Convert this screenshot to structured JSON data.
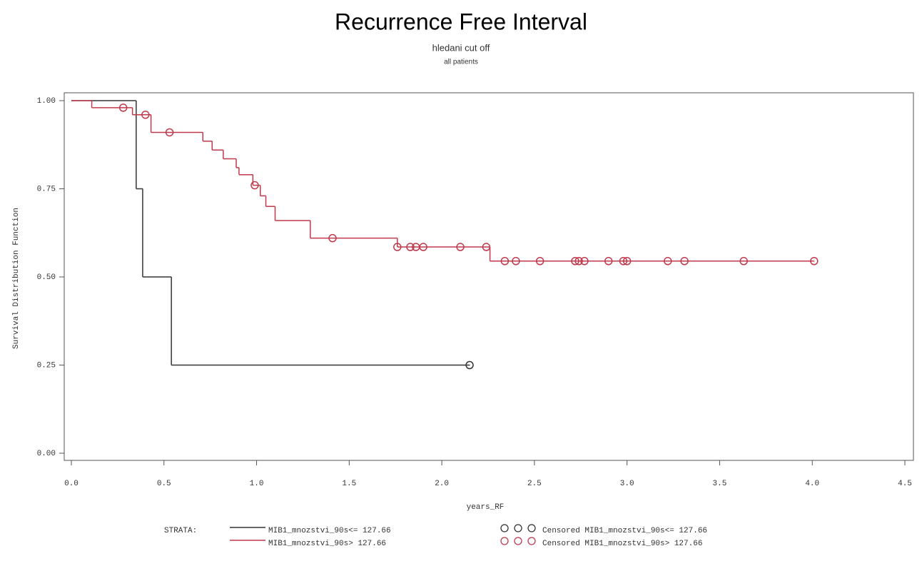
{
  "chart_data": {
    "type": "step",
    "title": "Recurrence Free Interval",
    "subtitle": "hledani cut off",
    "subtitle2": "all patients",
    "x_label": "years_RF",
    "y_label": "Survival Distribution Function",
    "legend_title": "STRATA:",
    "xlim": [
      0,
      4.5
    ],
    "ylim": [
      0,
      1
    ],
    "xticks": [
      {
        "value": 0,
        "label": "0.0"
      },
      {
        "value": 0.5,
        "label": "0.5"
      },
      {
        "value": 1,
        "label": "1.0"
      },
      {
        "value": 1.5,
        "label": "1.5"
      },
      {
        "value": 2,
        "label": "2.0"
      },
      {
        "value": 2.5,
        "label": "2.5"
      },
      {
        "value": 3,
        "label": "3.0"
      },
      {
        "value": 3.5,
        "label": "3.5"
      },
      {
        "value": 4,
        "label": "4.0"
      },
      {
        "value": 4.5,
        "label": "4.5"
      }
    ],
    "yticks": [
      {
        "value": 0,
        "label": "0.00"
      },
      {
        "value": 0.25,
        "label": "0.25"
      },
      {
        "value": 0.5,
        "label": "0.50"
      },
      {
        "value": 0.75,
        "label": "0.75"
      },
      {
        "value": 1,
        "label": "1.00"
      }
    ],
    "series": [
      {
        "name": "MIB1_mnozstvi_90s<= 127.66",
        "censored_name": "Censored MIB1_mnozstvi_90s<= 127.66",
        "color": "#333333",
        "x": [
          0,
          0.35,
          0.385,
          0.54,
          2.15
        ],
        "values": [
          1,
          0.75,
          0.5,
          0.25,
          0.25
        ],
        "censored": {
          "x": [
            2.15
          ],
          "values": [
            0.25
          ]
        }
      },
      {
        "name": "MIB1_mnozstvi_90s> 127.66",
        "censored_name": "Censored MIB1_mnozstvi_90s> 127.66",
        "color": "#c0394b",
        "x": [
          0,
          0.11,
          0.33,
          0.43,
          0.71,
          0.76,
          0.82,
          0.89,
          0.905,
          0.98,
          1.02,
          1.05,
          1.1,
          1.29,
          1.76,
          2.26,
          4.01
        ],
        "values": [
          1,
          0.98,
          0.96,
          0.91,
          0.885,
          0.86,
          0.835,
          0.81,
          0.79,
          0.76,
          0.73,
          0.7,
          0.66,
          0.61,
          0.585,
          0.545,
          0.545
        ],
        "censored": {
          "x": [
            0.28,
            0.4,
            0.53,
            0.99,
            1.41,
            1.76,
            1.83,
            1.86,
            1.9,
            2.1,
            2.24,
            2.34,
            2.4,
            2.53,
            2.72,
            2.74,
            2.77,
            2.9,
            2.98,
            3.0,
            3.22,
            3.31,
            3.63,
            4.01
          ],
          "values": [
            0.98,
            0.96,
            0.91,
            0.76,
            0.61,
            0.585,
            0.585,
            0.585,
            0.585,
            0.585,
            0.585,
            0.545,
            0.545,
            0.545,
            0.545,
            0.545,
            0.545,
            0.545,
            0.545,
            0.545,
            0.545,
            0.545,
            0.545,
            0.545
          ]
        }
      }
    ]
  }
}
